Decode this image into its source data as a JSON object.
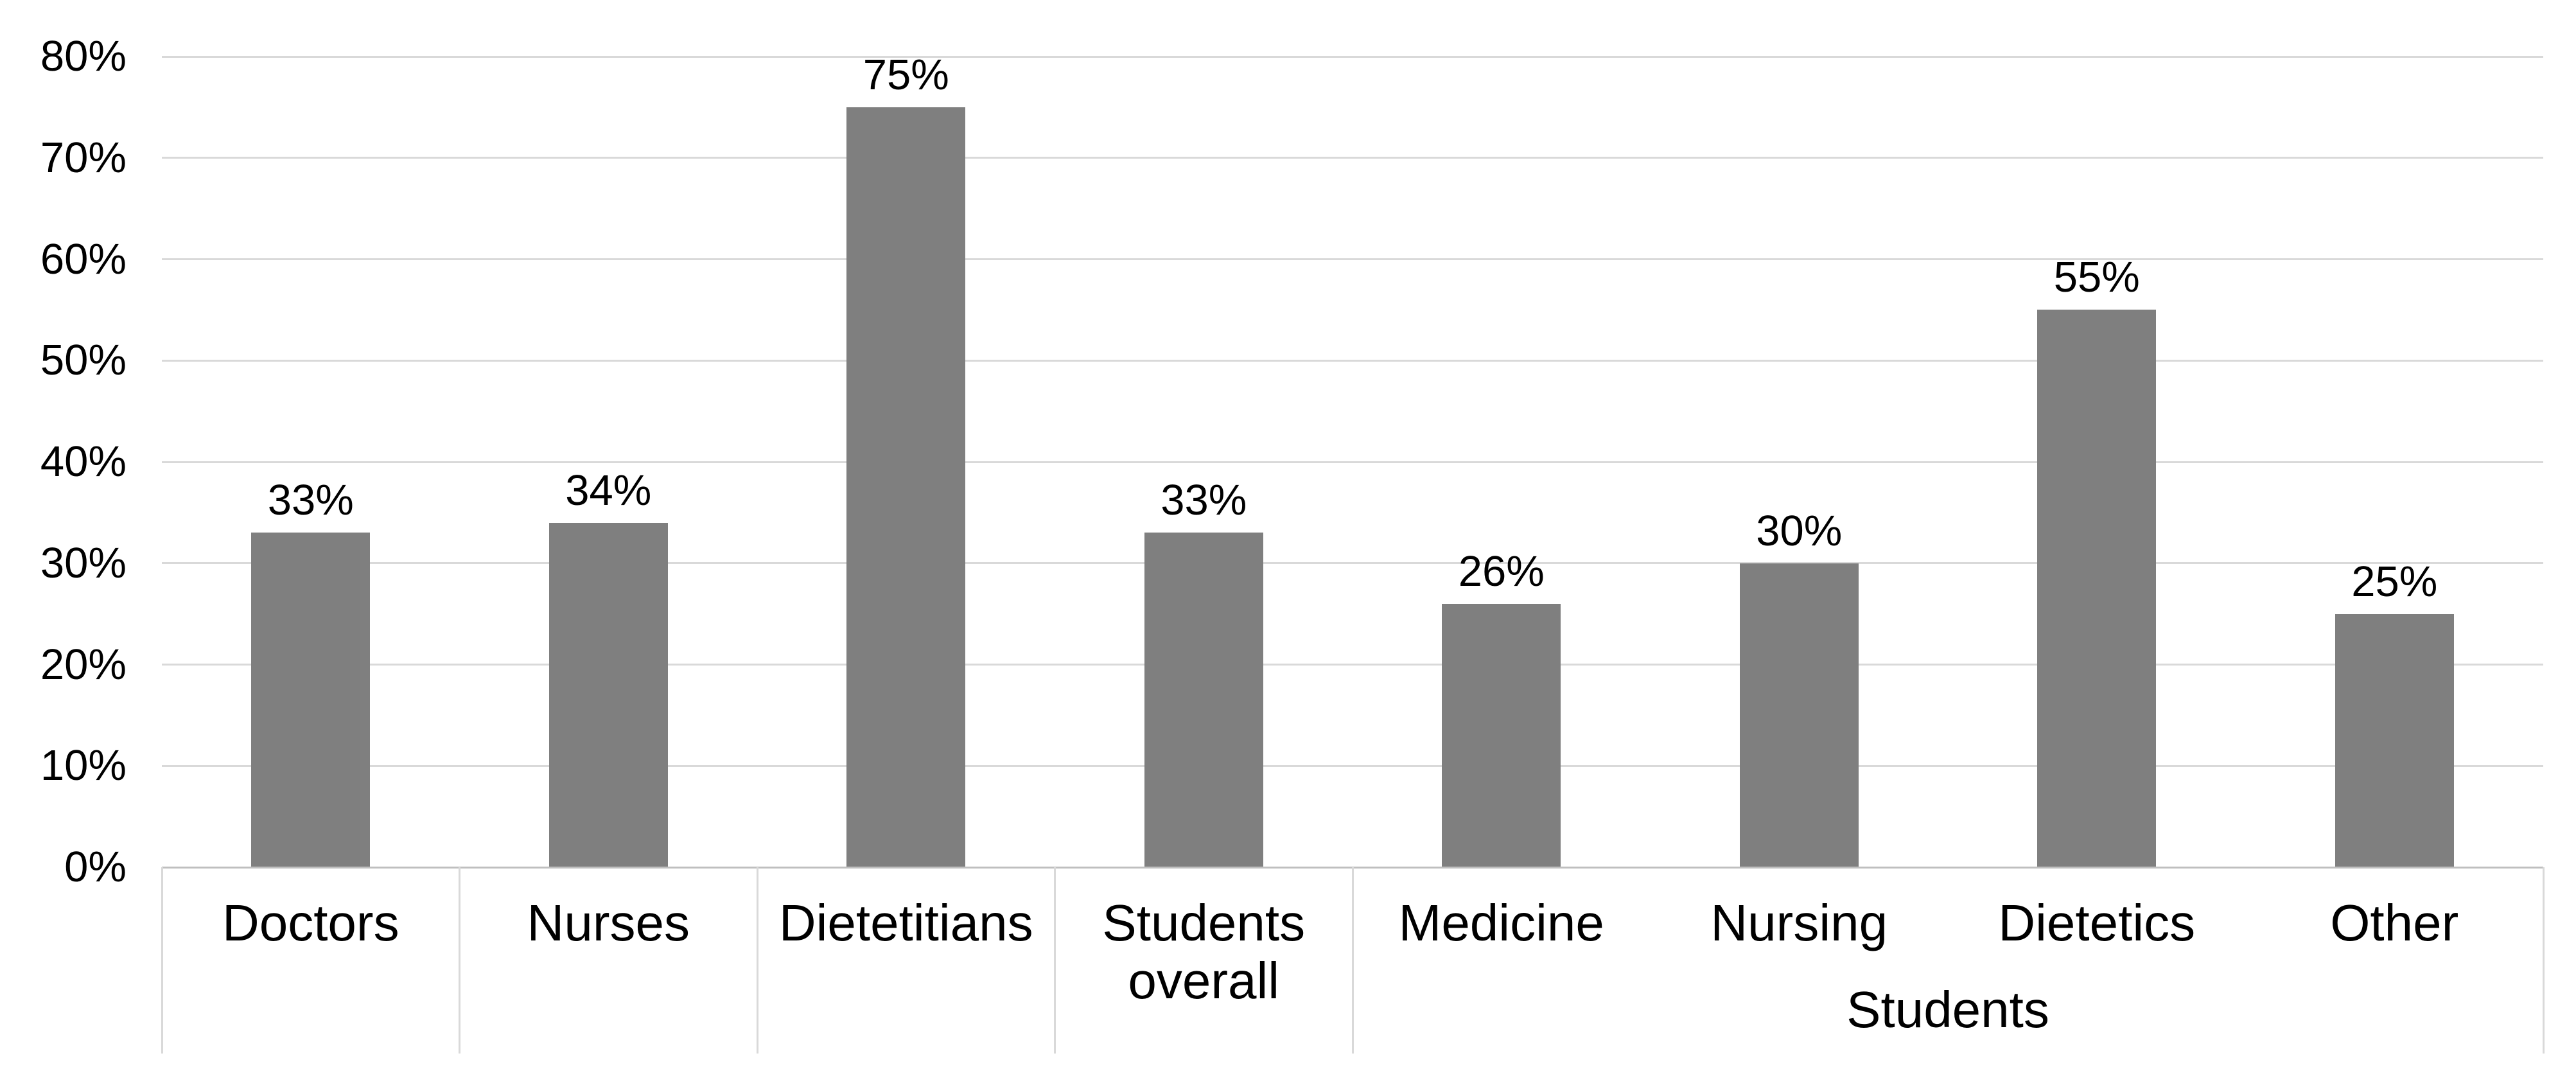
{
  "chart_data": {
    "type": "bar",
    "categories": [
      "Doctors",
      "Nurses",
      "Dietetitians",
      "Students overall",
      "Medicine",
      "Nursing",
      "Dietetics",
      "Other"
    ],
    "values": [
      33,
      34,
      75,
      33,
      26,
      30,
      55,
      25
    ],
    "value_labels": [
      "33%",
      "34%",
      "75%",
      "33%",
      "26%",
      "30%",
      "55%",
      "25%"
    ],
    "y_ticks": [
      "0%",
      "10%",
      "20%",
      "30%",
      "40%",
      "50%",
      "60%",
      "70%",
      "80%"
    ],
    "y_tick_values": [
      0,
      10,
      20,
      30,
      40,
      50,
      60,
      70,
      80
    ],
    "ylim": [
      0,
      80
    ],
    "grid": "horizontal",
    "legend": "none",
    "group_label": "Students",
    "group_start_index": 4,
    "group_end_index": 7,
    "bar_color": "#7F7F7F",
    "gridline_color": "#D9D9D9",
    "axis_line_color": "#BFBFBF",
    "text_color": "#000000"
  }
}
